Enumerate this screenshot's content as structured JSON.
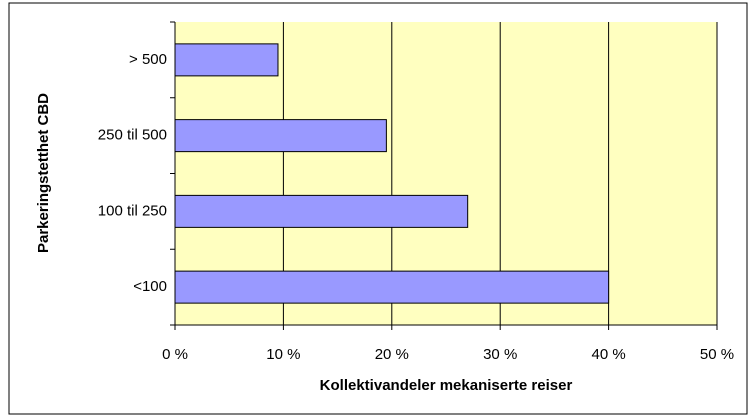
{
  "chart_data": {
    "type": "bar",
    "orientation": "horizontal",
    "x_label": "Kollektivandeler mekaniserte reiser",
    "y_label": "Parkeringstetthet CBD",
    "categories": [
      "> 500",
      "250 til 500",
      "100 til 250",
      "<100"
    ],
    "values": [
      9.5,
      19.5,
      27,
      40
    ],
    "color": "#9999ff",
    "xlim": [
      0,
      50
    ],
    "xticks": [
      {
        "value": 0,
        "label": "0 %"
      },
      {
        "value": 10,
        "label": "10 %"
      },
      {
        "value": 20,
        "label": "20 %"
      },
      {
        "value": 30,
        "label": "30 %"
      },
      {
        "value": 40,
        "label": "40 %"
      },
      {
        "value": 50,
        "label": "50 %"
      }
    ],
    "grid": true
  }
}
